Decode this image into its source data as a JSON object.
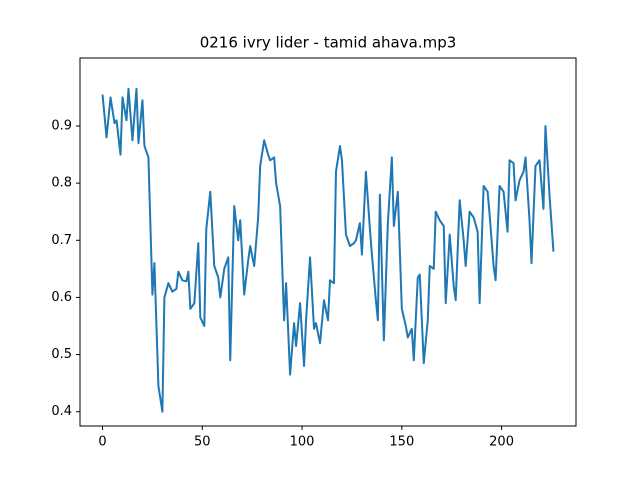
{
  "chart_data": {
    "type": "line",
    "title": "0216 ivry lider - tamid ahava.mp3",
    "color": "#1f77b4",
    "x": [
      0,
      2,
      4,
      6,
      7,
      9,
      10,
      12,
      13,
      15,
      17,
      18,
      20,
      21,
      23,
      25,
      26,
      28,
      30,
      31,
      33,
      35,
      37,
      38,
      40,
      42,
      43,
      44,
      46,
      48,
      49,
      51,
      52,
      54,
      56,
      58,
      59,
      61,
      63,
      64,
      66,
      68,
      69,
      71,
      73,
      74,
      76,
      78,
      79,
      81,
      83,
      84,
      86,
      87,
      89,
      91,
      92,
      94,
      96,
      97,
      99,
      101,
      102,
      104,
      106,
      107,
      109,
      111,
      113,
      114,
      116,
      117,
      119,
      120,
      122,
      124,
      126,
      127,
      129,
      130,
      132,
      134,
      135,
      137,
      138,
      139,
      141,
      143,
      145,
      146,
      148,
      150,
      152,
      153,
      155,
      156,
      158,
      159,
      161,
      163,
      164,
      166,
      167,
      169,
      171,
      172,
      174,
      176,
      177,
      179,
      181,
      182,
      184,
      186,
      188,
      189,
      191,
      193,
      194,
      196,
      197,
      199,
      201,
      203,
      204,
      206,
      207,
      209,
      211,
      212,
      214,
      215,
      217,
      219,
      221,
      222,
      224,
      226
    ],
    "values": [
      0.955,
      0.88,
      0.95,
      0.905,
      0.91,
      0.85,
      0.95,
      0.91,
      0.965,
      0.875,
      0.965,
      0.87,
      0.945,
      0.865,
      0.845,
      0.605,
      0.66,
      0.445,
      0.4,
      0.6,
      0.625,
      0.61,
      0.615,
      0.645,
      0.63,
      0.628,
      0.645,
      0.58,
      0.59,
      0.695,
      0.565,
      0.55,
      0.72,
      0.785,
      0.655,
      0.635,
      0.6,
      0.65,
      0.67,
      0.49,
      0.76,
      0.7,
      0.735,
      0.605,
      0.665,
      0.69,
      0.655,
      0.74,
      0.83,
      0.875,
      0.85,
      0.84,
      0.845,
      0.8,
      0.76,
      0.56,
      0.625,
      0.465,
      0.555,
      0.515,
      0.59,
      0.48,
      0.56,
      0.67,
      0.545,
      0.555,
      0.52,
      0.595,
      0.56,
      0.63,
      0.625,
      0.82,
      0.865,
      0.84,
      0.71,
      0.69,
      0.695,
      0.7,
      0.73,
      0.675,
      0.82,
      0.72,
      0.675,
      0.595,
      0.56,
      0.78,
      0.525,
      0.73,
      0.845,
      0.725,
      0.785,
      0.58,
      0.55,
      0.53,
      0.545,
      0.49,
      0.635,
      0.64,
      0.485,
      0.56,
      0.655,
      0.65,
      0.75,
      0.735,
      0.725,
      0.59,
      0.71,
      0.62,
      0.595,
      0.77,
      0.7,
      0.655,
      0.75,
      0.74,
      0.715,
      0.59,
      0.795,
      0.785,
      0.745,
      0.655,
      0.63,
      0.795,
      0.785,
      0.715,
      0.84,
      0.835,
      0.77,
      0.805,
      0.82,
      0.845,
      0.735,
      0.66,
      0.83,
      0.84,
      0.755,
      0.9,
      0.78,
      0.68
    ],
    "xlim": [
      -11.3,
      237.3
    ],
    "ylim": [
      0.375,
      1.019
    ],
    "xticks": [
      0,
      50,
      100,
      150,
      200
    ],
    "yticks": [
      0.4,
      0.5,
      0.6,
      0.7,
      0.8,
      0.9
    ]
  }
}
